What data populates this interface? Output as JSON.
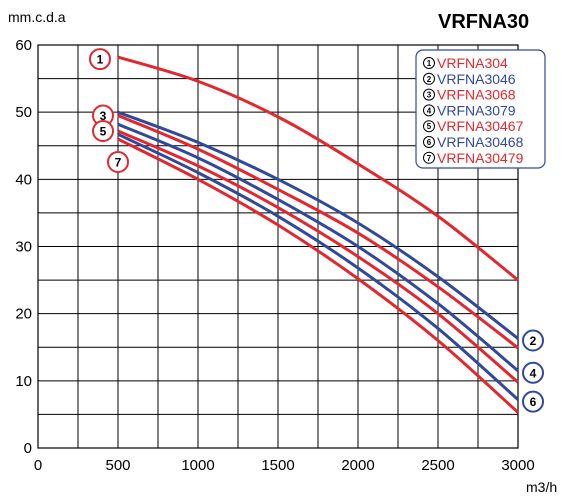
{
  "chart_data": {
    "type": "line",
    "title": "VRFNA30",
    "ylabel": "mm.c.d.a",
    "xlabel": "m3/h",
    "xlim": [
      0,
      3000
    ],
    "ylim": [
      0,
      60
    ],
    "xticks": [
      0,
      500,
      1000,
      1500,
      2000,
      2500,
      3000
    ],
    "yticks": [
      0,
      10,
      20,
      30,
      40,
      50,
      60
    ],
    "grid": true,
    "legend_position": "top-right",
    "colors": {
      "red": "#e2282e",
      "blue": "#2f4a9a"
    },
    "series": [
      {
        "name": "VRFNA304",
        "marker": "1",
        "color": "#e2282e",
        "x": [
          500,
          1000,
          1500,
          2000,
          2500,
          3000
        ],
        "y": [
          58.2,
          54.6,
          49.3,
          42.3,
          34.5,
          25
        ]
      },
      {
        "name": "VRFNA3046",
        "marker": "2",
        "color": "#2f4a9a",
        "x": [
          500,
          1000,
          1500,
          2000,
          2500,
          3000
        ],
        "y": [
          50,
          45.5,
          40,
          33.5,
          25.5,
          16.3
        ]
      },
      {
        "name": "VRFNA3068",
        "marker": "3",
        "color": "#e2282e",
        "x": [
          500,
          1000,
          1500,
          2000,
          2500,
          3000
        ],
        "y": [
          49.5,
          44.5,
          38.5,
          32,
          24,
          14.9
        ]
      },
      {
        "name": "VRFNA3079",
        "marker": "4",
        "color": "#2f4a9a",
        "x": [
          500,
          1000,
          1500,
          2000,
          2500,
          3000
        ],
        "y": [
          48.2,
          43.2,
          37,
          30,
          21.5,
          11.5
        ]
      },
      {
        "name": "VRFNA30467",
        "marker": "5",
        "color": "#e2282e",
        "x": [
          500,
          1000,
          1500,
          2000,
          2500,
          3000
        ],
        "y": [
          47.2,
          42,
          35.8,
          28.5,
          20,
          9.8
        ]
      },
      {
        "name": "VRFNA30468",
        "marker": "6",
        "color": "#2f4a9a",
        "x": [
          500,
          1000,
          1500,
          2000,
          2500,
          3000
        ],
        "y": [
          46.7,
          41,
          34.5,
          26.8,
          17.8,
          7.2
        ]
      },
      {
        "name": "VRFNA30479",
        "marker": "7",
        "color": "#e2282e",
        "x": [
          500,
          1000,
          1500,
          2000,
          2500,
          3000
        ],
        "y": [
          46,
          40,
          33.2,
          25.2,
          16,
          5.3
        ]
      }
    ],
    "curve_markers": [
      {
        "text": "1",
        "at": "start",
        "series": 0
      },
      {
        "text": "3",
        "at": "start",
        "series": 2
      },
      {
        "text": "5",
        "at": "start",
        "series": 4
      },
      {
        "text": "7",
        "at": "start",
        "series": 6
      },
      {
        "text": "2",
        "at": "end",
        "series": 1
      },
      {
        "text": "4",
        "at": "end",
        "series": 3
      },
      {
        "text": "6",
        "at": "end",
        "series": 5
      }
    ]
  }
}
